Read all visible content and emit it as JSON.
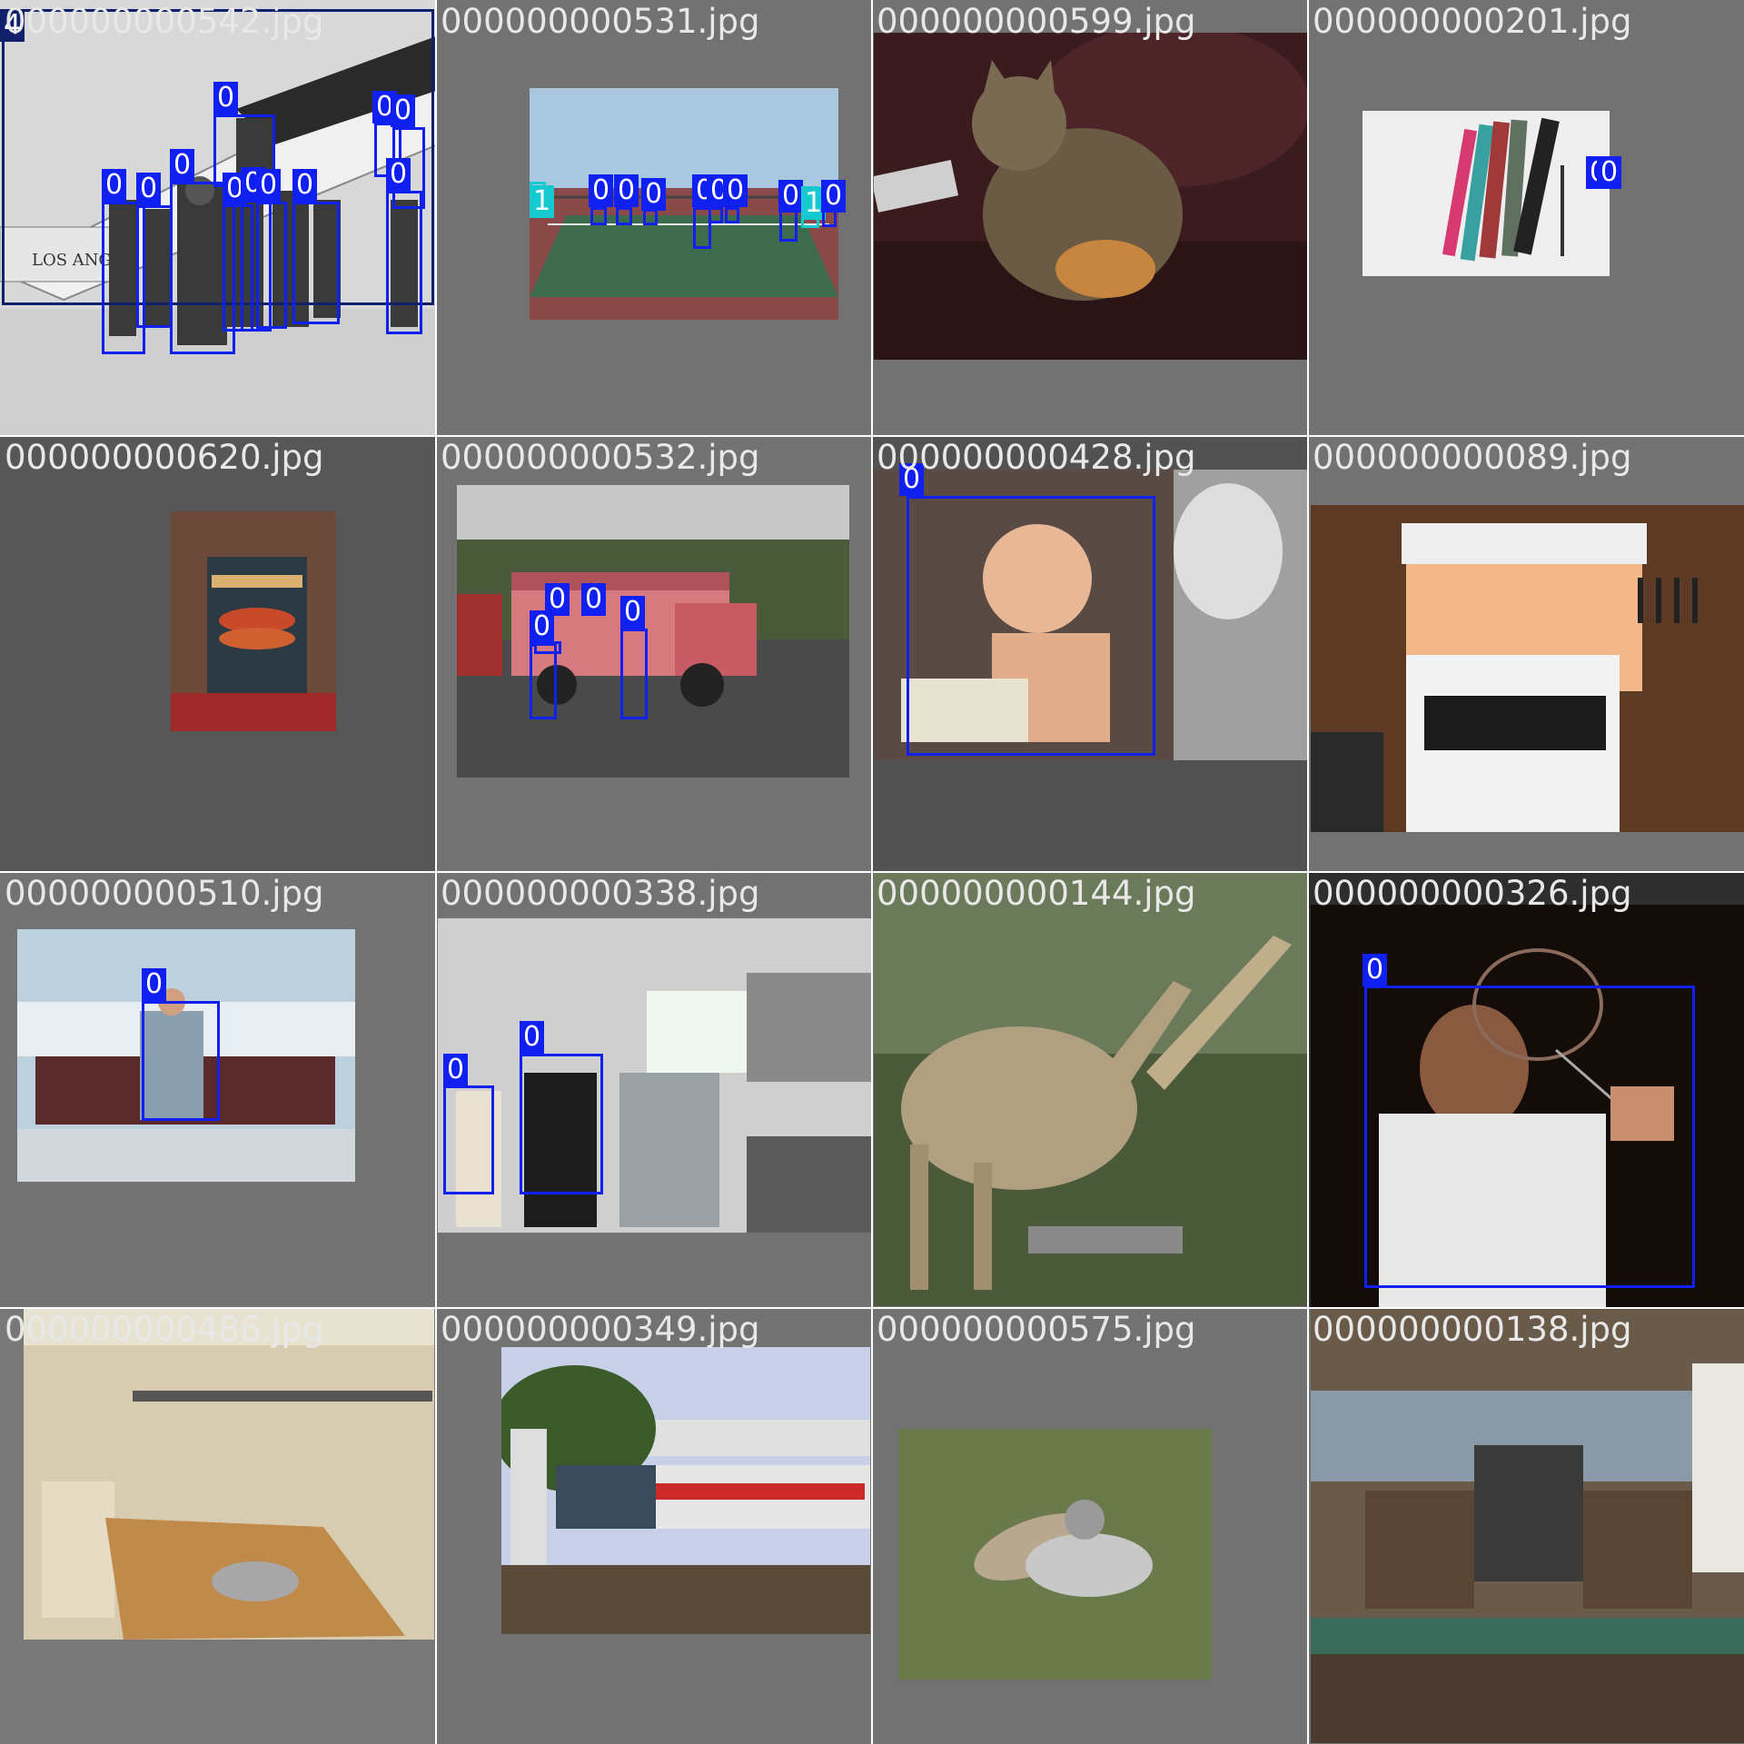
{
  "mosaic": {
    "tiles": [
      {
        "filename": "000000000542.jpg",
        "scene": "vintage biplane with crowd",
        "labels": [
          "4",
          "0",
          "0",
          "0",
          "0",
          "0",
          "0",
          "0",
          "0",
          "0",
          "0",
          "0"
        ]
      },
      {
        "filename": "000000000531.jpg",
        "scene": "tennis court with players",
        "labels": [
          "1",
          "0",
          "0",
          "0",
          "0",
          "0",
          "0",
          "0",
          "1",
          "0"
        ]
      },
      {
        "filename": "000000000599.jpg",
        "scene": "tabby cat on leather couch",
        "labels": []
      },
      {
        "filename": "000000000201.jpg",
        "scene": "snowboards in snow",
        "labels": [
          "0",
          "0"
        ]
      },
      {
        "filename": "000000000620.jpg",
        "scene": "pizza oven",
        "labels": []
      },
      {
        "filename": "000000000532.jpg",
        "scene": "pink bus with people",
        "labels": [
          "0",
          "0",
          "0",
          "0"
        ]
      },
      {
        "filename": "000000000428.jpg",
        "scene": "toddler with cake and balloon",
        "labels": [
          "0"
        ]
      },
      {
        "filename": "000000000089.jpg",
        "scene": "kitchen with stove and knives",
        "labels": []
      },
      {
        "filename": "000000000510.jpg",
        "scene": "man on park bench",
        "labels": [
          "0"
        ]
      },
      {
        "filename": "000000000338.jpg",
        "scene": "people in kitchen",
        "labels": [
          "0",
          "0"
        ]
      },
      {
        "filename": "000000000144.jpg",
        "scene": "giraffes at feeder",
        "labels": []
      },
      {
        "filename": "000000000326.jpg",
        "scene": "man with wine glass",
        "labels": [
          "0"
        ]
      },
      {
        "filename": "000000000486.jpg",
        "scene": "commercial kitchen",
        "labels": []
      },
      {
        "filename": "000000000349.jpg",
        "scene": "train at station",
        "labels": []
      },
      {
        "filename": "000000000575.jpg",
        "scene": "cat with shoe on grass",
        "labels": []
      },
      {
        "filename": "000000000138.jpg",
        "scene": "rustic kitchen",
        "labels": []
      }
    ]
  },
  "colors": {
    "box": "#1020f0",
    "box_alt": "#16c8d0",
    "tile_bg": "#727272"
  }
}
